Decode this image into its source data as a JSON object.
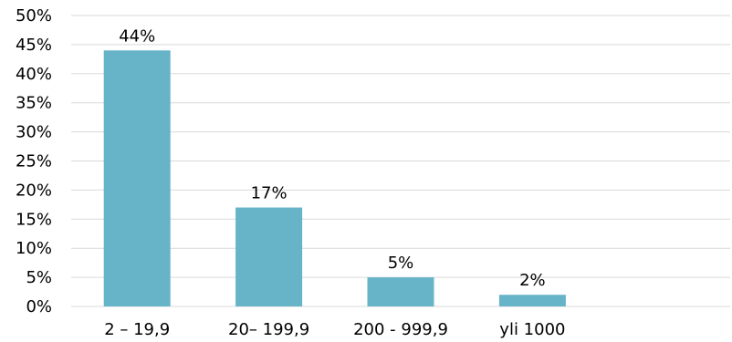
{
  "chart_data": {
    "type": "bar",
    "title": "",
    "xlabel": "",
    "ylabel": "",
    "categories": [
      "2 – 19,9",
      "20– 199,9",
      "200 - 999,9",
      "yli 1000",
      ""
    ],
    "values": [
      44,
      17,
      5,
      2,
      null
    ],
    "data_labels": [
      "44%",
      "17%",
      "5%",
      "2%",
      ""
    ],
    "ylim": [
      0,
      50
    ],
    "y_ticks": [
      0,
      5,
      10,
      15,
      20,
      25,
      30,
      35,
      40,
      45,
      50
    ],
    "y_tick_labels": [
      "0%",
      "5%",
      "10%",
      "15%",
      "20%",
      "25%",
      "30%",
      "35%",
      "40%",
      "45%",
      "50%"
    ],
    "grid": true,
    "legend": "none",
    "bar_color": "#67b3c8",
    "grid_color": "#d9d9d9"
  }
}
